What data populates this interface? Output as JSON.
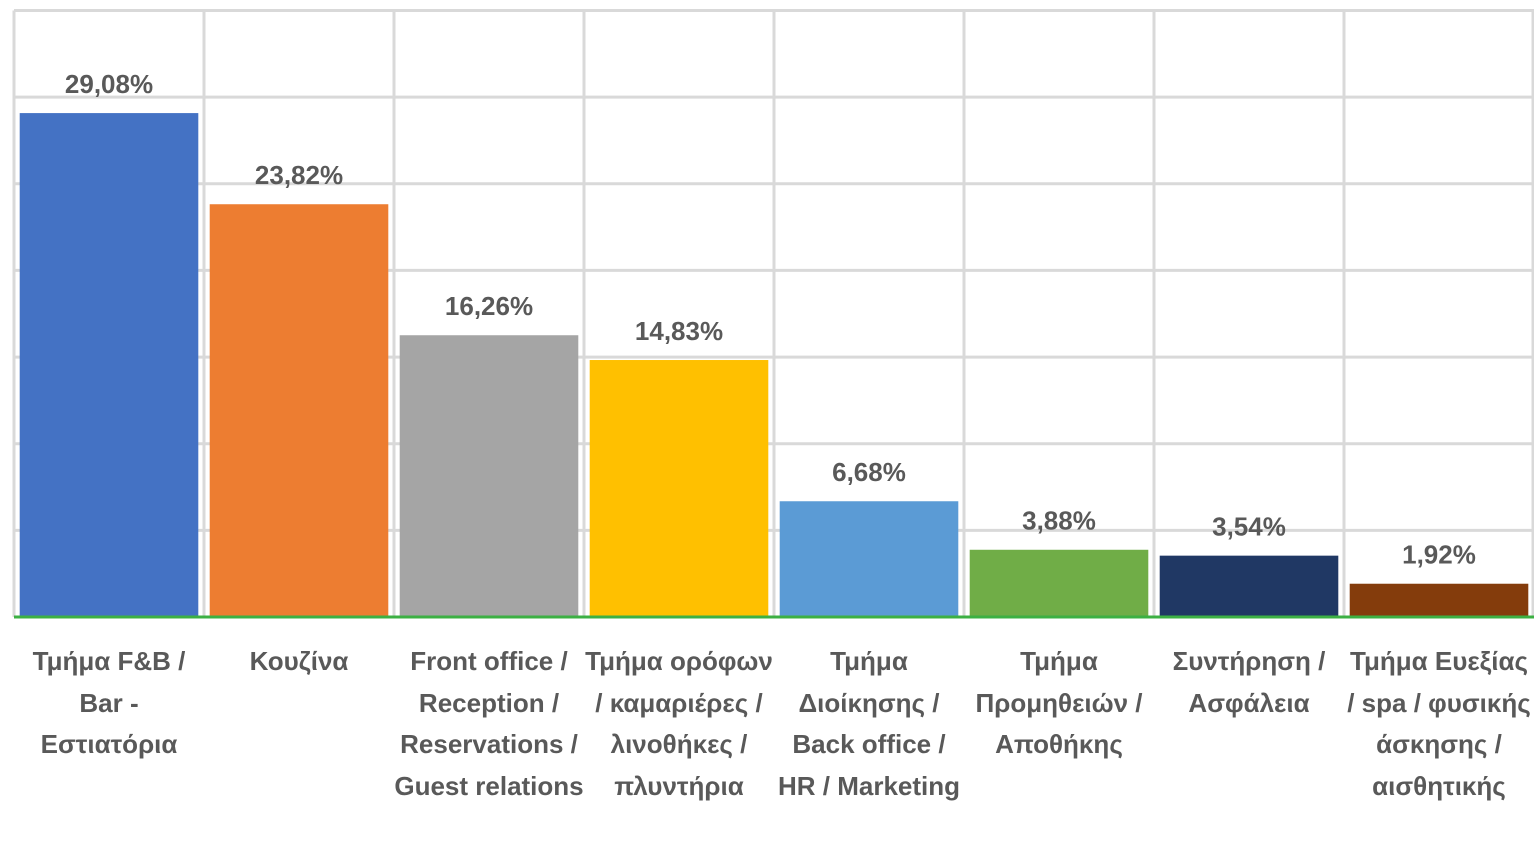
{
  "chart_data": {
    "type": "bar",
    "categories": [
      "Τμήμα F&B / Bar - Εστιατόρια",
      "Κουζίνα",
      "Front office / Reception / Reservations / Guest relations",
      "Τμήμα ορόφων / καμαριέρες / λινοθήκες / πλυντήρια",
      "Τμήμα Διοίκησης / Back office / HR / Marketing",
      "Τμήμα Προμηθειών / Αποθήκης",
      "Συντήρηση / Ασφάλεια",
      "Τμήμα Ευεξίας / spa / φυσικής άσκησης / αισθητικής"
    ],
    "values": [
      29.08,
      23.82,
      16.26,
      14.83,
      6.68,
      3.88,
      3.54,
      1.92
    ],
    "value_labels": [
      "29,08%",
      "23,82%",
      "16,26%",
      "14,83%",
      "6,68%",
      "3,88%",
      "3,54%",
      "1,92%"
    ],
    "colors": [
      "#4472c4",
      "#ed7d31",
      "#a5a5a5",
      "#ffc000",
      "#5b9bd5",
      "#70ad47",
      "#203864",
      "#843c0c"
    ],
    "ylim": [
      0,
      35
    ],
    "yticks": [
      0,
      5,
      10,
      15,
      20,
      25,
      30,
      35
    ],
    "grid": true
  }
}
